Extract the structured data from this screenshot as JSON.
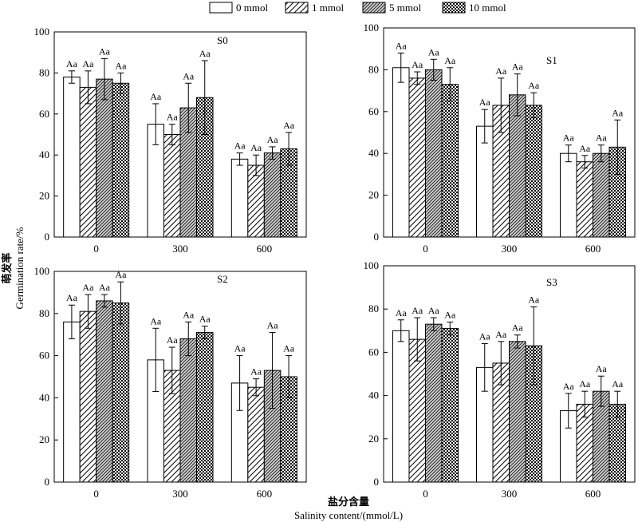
{
  "legend": {
    "entries": [
      {
        "label": "0 mmol",
        "pattern": "solid"
      },
      {
        "label": "1 mmol",
        "pattern": "hatch"
      },
      {
        "label": "5 mmol",
        "pattern": "dense-hatch"
      },
      {
        "label": "10 mmol",
        "pattern": "checker"
      }
    ]
  },
  "y_axis_title": {
    "zh": "萌发率",
    "en": "Germination rate/%"
  },
  "x_axis_title": {
    "zh": "盐分含量",
    "en": "Salinity content/(mmol/L)"
  },
  "chart_data": [
    {
      "type": "bar",
      "panel": "S0",
      "categories": [
        "0",
        "300",
        "600"
      ],
      "series": [
        {
          "name": "0 mmol",
          "values": [
            78,
            55,
            38
          ],
          "errors": [
            3,
            10,
            3
          ],
          "labels": [
            "Aa",
            "Aa",
            "Aa"
          ]
        },
        {
          "name": "1 mmol",
          "values": [
            73,
            50,
            35
          ],
          "errors": [
            8,
            5,
            5
          ],
          "labels": [
            "Aa",
            "Aa",
            "Aa"
          ]
        },
        {
          "name": "5 mmol",
          "values": [
            77,
            63,
            41
          ],
          "errors": [
            10,
            12,
            3
          ],
          "labels": [
            "Aa",
            "Aa",
            "Aa"
          ]
        },
        {
          "name": "10 mmol",
          "values": [
            75,
            68,
            43
          ],
          "errors": [
            5,
            18,
            8
          ],
          "labels": [
            "Aa",
            "Aa",
            "Aa"
          ]
        }
      ],
      "ylim": [
        0,
        100
      ],
      "yticks": [
        0,
        20,
        40,
        60,
        80,
        100
      ]
    },
    {
      "type": "bar",
      "panel": "S1",
      "categories": [
        "0",
        "300",
        "600"
      ],
      "series": [
        {
          "name": "0 mmol",
          "values": [
            81,
            53,
            40
          ],
          "errors": [
            7,
            8,
            4
          ],
          "labels": [
            "Aa",
            "Aa",
            "Aa"
          ]
        },
        {
          "name": "1 mmol",
          "values": [
            76,
            63,
            36
          ],
          "errors": [
            3,
            13,
            3
          ],
          "labels": [
            "Aa",
            "Aa",
            "Aa"
          ]
        },
        {
          "name": "5 mmol",
          "values": [
            80,
            68,
            40
          ],
          "errors": [
            5,
            10,
            4
          ],
          "labels": [
            "Aa",
            "Aa",
            "Aa"
          ]
        },
        {
          "name": "10 mmol",
          "values": [
            73,
            63,
            43
          ],
          "errors": [
            8,
            6,
            13
          ],
          "labels": [
            "Aa",
            "Aa",
            "Aa"
          ]
        }
      ],
      "ylim": [
        0,
        100
      ],
      "yticks": [
        0,
        20,
        40,
        60,
        80,
        100
      ]
    },
    {
      "type": "bar",
      "panel": "S2",
      "categories": [
        "0",
        "300",
        "600"
      ],
      "series": [
        {
          "name": "0 mmol",
          "values": [
            76,
            58,
            47
          ],
          "errors": [
            8,
            15,
            13
          ],
          "labels": [
            "Aa",
            "Aa",
            "Aa"
          ]
        },
        {
          "name": "1 mmol",
          "values": [
            81,
            53,
            45
          ],
          "errors": [
            8,
            11,
            4
          ],
          "labels": [
            "Aa",
            "Aa",
            "Aa"
          ]
        },
        {
          "name": "5 mmol",
          "values": [
            86,
            68,
            53
          ],
          "errors": [
            3,
            8,
            18
          ],
          "labels": [
            "Aa",
            "Aa",
            "Aa"
          ]
        },
        {
          "name": "10 mmol",
          "values": [
            85,
            71,
            50
          ],
          "errors": [
            10,
            3,
            10
          ],
          "labels": [
            "Aa",
            "Aa",
            "Aa"
          ]
        }
      ],
      "ylim": [
        0,
        100
      ],
      "yticks": [
        0,
        20,
        40,
        60,
        80,
        100
      ]
    },
    {
      "type": "bar",
      "panel": "S3",
      "categories": [
        "0",
        "300",
        "600"
      ],
      "series": [
        {
          "name": "0 mmol",
          "values": [
            70,
            53,
            33
          ],
          "errors": [
            5,
            11,
            8
          ],
          "labels": [
            "Aa",
            "Aa",
            "Aa"
          ]
        },
        {
          "name": "1 mmol",
          "values": [
            66,
            55,
            36
          ],
          "errors": [
            10,
            10,
            6
          ],
          "labels": [
            "Aa",
            "Aa",
            "Aa"
          ]
        },
        {
          "name": "5 mmol",
          "values": [
            73,
            65,
            42
          ],
          "errors": [
            3,
            3,
            7
          ],
          "labels": [
            "Aa",
            "Aa",
            "Aa"
          ]
        },
        {
          "name": "10 mmol",
          "values": [
            71,
            63,
            36
          ],
          "errors": [
            3,
            18,
            6
          ],
          "labels": [
            "Aa",
            "Aa",
            "Aa"
          ]
        }
      ],
      "ylim": [
        0,
        100
      ],
      "yticks": [
        0,
        20,
        40,
        60,
        80,
        100
      ]
    }
  ]
}
